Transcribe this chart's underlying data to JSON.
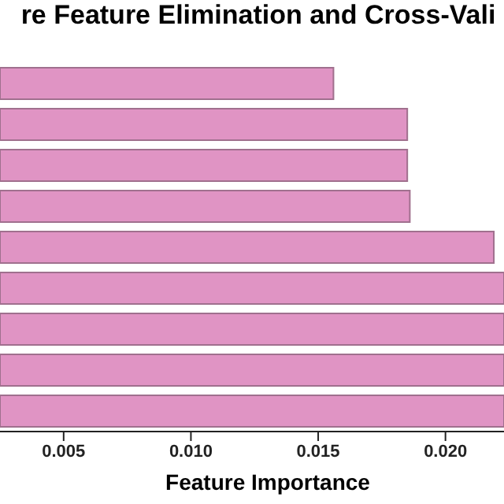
{
  "chart_data": {
    "type": "bar",
    "orientation": "horizontal",
    "title": "re Feature Elimination and Cross-Vali",
    "xlabel": "Feature Importance",
    "categories": [
      null,
      null,
      null,
      null,
      null,
      null,
      null,
      null,
      null
    ],
    "values": [
      0.0156,
      0.0185,
      0.0185,
      0.0186,
      0.0219,
      0.0223,
      0.0223,
      0.0223,
      0.0223
    ],
    "color": "#e094c4",
    "xlim": [
      0.0025,
      0.0223
    ],
    "xticks": [
      0.005,
      {
        "value": 0.01,
        "label": "0.010"
      },
      0.015,
      {
        "value": 0.02,
        "label": "0.020"
      }
    ],
    "grid": false,
    "legend": false
  }
}
